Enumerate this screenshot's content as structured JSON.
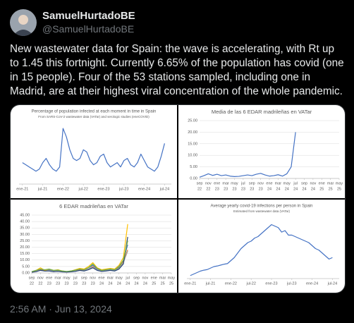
{
  "tweet": {
    "name": "SamuelHurtadoBE",
    "handle": "@SamuelHurtadoBE",
    "text": "New wastewater data for Spain: the wave is accelerating, with Rt up to 1.45 this fortnight. Currently 6.65% of the population has covid (one in 15 people). Four of the 53 stations sampled, including one in Madrid, are at their highest viral concentration of the whole pandemic.",
    "timestamp": "2:56 AM · Jun 13, 2024"
  },
  "chart_data": [
    {
      "type": "line",
      "title": "Percentage of population infected at each moment in time in Spain",
      "subtitle": "From SARS-CoV-2  wastewater data (VATar) and serologic studies (eneCOVID)",
      "x": [
        0,
        1,
        2,
        3,
        4,
        5,
        6,
        7,
        8,
        9,
        10,
        11,
        12,
        13,
        14,
        15,
        16,
        17,
        18,
        19,
        20,
        21,
        22,
        23,
        24,
        25,
        26,
        27,
        28,
        29,
        30,
        31,
        32,
        33,
        34,
        35,
        36,
        37,
        38,
        39,
        40,
        41,
        42
      ],
      "series": [
        {
          "color": "#4472c4",
          "values": [
            5,
            4.5,
            4,
            3.5,
            3,
            3.5,
            5,
            6,
            4.5,
            3.5,
            3,
            4,
            13,
            11,
            8,
            6,
            5.5,
            6,
            8,
            7.5,
            5.5,
            4.5,
            5,
            6.5,
            7,
            5,
            4,
            4.5,
            5,
            4,
            5.5,
            6,
            4.5,
            4,
            5,
            7,
            5.5,
            4,
            3.5,
            3,
            4,
            6.5,
            9.5
          ]
        }
      ],
      "xlim": [
        -1,
        44
      ],
      "xticks": [
        {
          "value": 0,
          "label": "ene-21"
        },
        {
          "value": 6,
          "label": "jul-21"
        },
        {
          "value": 12,
          "label": "ene-22"
        },
        {
          "value": 18,
          "label": "jul-22"
        },
        {
          "value": 24,
          "label": "ene-23"
        },
        {
          "value": 30,
          "label": "jul-23"
        },
        {
          "value": 36,
          "label": "ene-24"
        },
        {
          "value": 42,
          "label": "jul-24"
        }
      ],
      "ylim": [
        0,
        14
      ],
      "grid": false
    },
    {
      "type": "line",
      "title": "Media de las 6 EDAR madrileñas en VATar",
      "x": [
        0,
        1,
        2,
        3,
        4,
        5,
        6,
        7,
        8,
        9,
        10,
        11,
        12,
        13,
        14,
        15,
        16,
        17,
        18,
        19,
        20,
        21,
        22
      ],
      "series": [
        {
          "color": "#4472c4",
          "values": [
            0.5,
            1.2,
            2.0,
            1.3,
            1.8,
            1.2,
            1.5,
            1.0,
            0.8,
            0.9,
            1.2,
            1.5,
            1.2,
            1.8,
            2.2,
            1.5,
            1.0,
            1.2,
            1.6,
            1.0,
            2.0,
            5.0,
            20.0
          ]
        }
      ],
      "xlim": [
        0,
        32
      ],
      "xticks": [
        {
          "value": 0,
          "label": "sep"
        },
        {
          "value": 2,
          "label": "nov"
        },
        {
          "value": 4,
          "label": "ene"
        },
        {
          "value": 6,
          "label": "mar"
        },
        {
          "value": 8,
          "label": "may"
        },
        {
          "value": 10,
          "label": "jul"
        },
        {
          "value": 12,
          "label": "sep"
        },
        {
          "value": 14,
          "label": "nov"
        },
        {
          "value": 16,
          "label": "ene"
        },
        {
          "value": 18,
          "label": "mar"
        },
        {
          "value": 20,
          "label": "may"
        },
        {
          "value": 22,
          "label": "jul"
        },
        {
          "value": 24,
          "label": "sep"
        },
        {
          "value": 26,
          "label": "nov"
        },
        {
          "value": 28,
          "label": "ene"
        },
        {
          "value": 30,
          "label": "mar"
        },
        {
          "value": 32,
          "label": "may"
        }
      ],
      "xtick_years": [
        "22",
        "22",
        "23",
        "23",
        "23",
        "23",
        "23",
        "23",
        "24",
        "24",
        "24",
        "24",
        "24",
        "24",
        "25",
        "25",
        "25"
      ],
      "ylim": [
        0,
        25
      ],
      "yticks": [
        {
          "value": 0,
          "label": "0.00"
        },
        {
          "value": 5,
          "label": "5.00"
        },
        {
          "value": 10,
          "label": "10.00"
        },
        {
          "value": 15,
          "label": "15.00"
        },
        {
          "value": 20,
          "label": "20.00"
        },
        {
          "value": 25,
          "label": "25.00"
        }
      ],
      "grid": true
    },
    {
      "type": "line",
      "title": "6 EDAR madrileñas en VATar",
      "x": [
        0,
        1,
        2,
        3,
        4,
        5,
        6,
        7,
        8,
        9,
        10,
        11,
        12,
        13,
        14,
        15,
        16,
        17,
        18,
        19,
        20,
        21,
        22
      ],
      "series": [
        {
          "color": "#4472c4",
          "values": [
            1,
            2,
            3,
            2,
            2.5,
            1.5,
            2,
            1.5,
            1,
            1.5,
            2,
            3,
            2.5,
            4,
            6,
            3,
            2,
            2.5,
            3,
            2.5,
            5,
            10,
            22
          ]
        },
        {
          "color": "#ed7d31",
          "values": [
            0.5,
            1.5,
            2.5,
            1.5,
            2,
            1,
            1.5,
            1,
            0.8,
            1,
            1.5,
            2.5,
            2,
            3,
            5,
            2.5,
            1.5,
            2,
            2.5,
            2,
            4,
            9,
            18
          ]
        },
        {
          "color": "#a5a5a5",
          "values": [
            1,
            1.5,
            2,
            1.5,
            2,
            1.2,
            1.5,
            1,
            0.8,
            1,
            1.5,
            2,
            1.8,
            3,
            4.5,
            2.5,
            1.5,
            2,
            2.5,
            2,
            3.5,
            8,
            17
          ]
        },
        {
          "color": "#ffc000",
          "values": [
            0.8,
            2,
            4,
            2,
            3,
            2,
            2.5,
            1.5,
            1,
            1.5,
            2.5,
            3.5,
            3,
            5,
            8,
            4,
            2.5,
            3,
            3.5,
            3,
            6,
            12,
            38
          ]
        },
        {
          "color": "#264478",
          "values": [
            0.5,
            1,
            2,
            1.5,
            1.5,
            1,
            1.2,
            0.8,
            0.7,
            0.9,
            1.2,
            2,
            1.5,
            2.5,
            4,
            2,
            1.2,
            1.5,
            2,
            1.5,
            3,
            7,
            28
          ]
        },
        {
          "color": "#70ad47",
          "values": [
            1,
            2,
            3,
            2.5,
            3,
            2,
            2.2,
            1.5,
            1.2,
            1.5,
            2.2,
            3,
            2.5,
            4,
            7,
            3.5,
            2,
            2.5,
            3,
            2.5,
            4.5,
            10,
            25
          ]
        }
      ],
      "xlim": [
        0,
        32
      ],
      "xticks": [
        {
          "value": 0,
          "label": "sep"
        },
        {
          "value": 2,
          "label": "nov"
        },
        {
          "value": 4,
          "label": "ene"
        },
        {
          "value": 6,
          "label": "mar"
        },
        {
          "value": 8,
          "label": "may"
        },
        {
          "value": 10,
          "label": "jul"
        },
        {
          "value": 12,
          "label": "sep"
        },
        {
          "value": 14,
          "label": "nov"
        },
        {
          "value": 16,
          "label": "ene"
        },
        {
          "value": 18,
          "label": "mar"
        },
        {
          "value": 20,
          "label": "may"
        },
        {
          "value": 22,
          "label": "jul"
        },
        {
          "value": 24,
          "label": "sep"
        },
        {
          "value": 26,
          "label": "nov"
        },
        {
          "value": 28,
          "label": "ene"
        },
        {
          "value": 30,
          "label": "mar"
        },
        {
          "value": 32,
          "label": "may"
        }
      ],
      "xtick_years": [
        "22",
        "22",
        "23",
        "23",
        "23",
        "23",
        "23",
        "23",
        "24",
        "24",
        "24",
        "24",
        "24",
        "24",
        "25",
        "25",
        "25"
      ],
      "ylim": [
        0,
        45
      ],
      "yticks": [
        {
          "value": 0,
          "label": "0.00"
        },
        {
          "value": 5,
          "label": "5.00"
        },
        {
          "value": 10,
          "label": "10.00"
        },
        {
          "value": 15,
          "label": "15.00"
        },
        {
          "value": 20,
          "label": "20.00"
        },
        {
          "value": 25,
          "label": "25.00"
        },
        {
          "value": 30,
          "label": "30.00"
        },
        {
          "value": 35,
          "label": "35.00"
        },
        {
          "value": 40,
          "label": "40.00"
        },
        {
          "value": 45,
          "label": "45.00"
        }
      ],
      "grid": true
    },
    {
      "type": "line",
      "title": "Average yearly covid-19 infections per person in Spain",
      "subtitle": "Estimated from wastewater data (VATar)",
      "x": [
        0,
        1,
        2,
        3,
        4,
        5,
        6,
        7,
        8,
        9,
        10,
        11,
        12,
        13,
        14,
        15,
        16,
        17,
        18,
        19,
        20,
        21,
        22,
        23,
        24,
        25,
        26,
        27,
        28,
        29,
        30,
        31,
        32,
        33,
        34,
        35,
        36,
        37,
        38,
        39,
        40,
        41,
        42
      ],
      "series": [
        {
          "color": "#4472c4",
          "values": [
            0.1,
            0.15,
            0.2,
            0.25,
            0.28,
            0.3,
            0.35,
            0.4,
            0.42,
            0.45,
            0.48,
            0.5,
            0.6,
            0.7,
            0.85,
            1.0,
            1.1,
            1.2,
            1.25,
            1.35,
            1.4,
            1.5,
            1.6,
            1.7,
            1.8,
            1.75,
            1.7,
            1.55,
            1.6,
            1.45,
            1.45,
            1.4,
            1.35,
            1.3,
            1.25,
            1.2,
            1.1,
            1.0,
            0.95,
            0.85,
            0.75,
            0.65,
            0.7
          ]
        }
      ],
      "xlim": [
        -1,
        44
      ],
      "xticks": [
        {
          "value": 0,
          "label": "ene-21"
        },
        {
          "value": 6,
          "label": "jul-21"
        },
        {
          "value": 12,
          "label": "ene-22"
        },
        {
          "value": 18,
          "label": "jul-22"
        },
        {
          "value": 24,
          "label": "ene-23"
        },
        {
          "value": 30,
          "label": "jul-23"
        },
        {
          "value": 36,
          "label": "ene-24"
        },
        {
          "value": 42,
          "label": "jul-24"
        }
      ],
      "ylim": [
        0,
        2
      ],
      "grid": false
    }
  ]
}
